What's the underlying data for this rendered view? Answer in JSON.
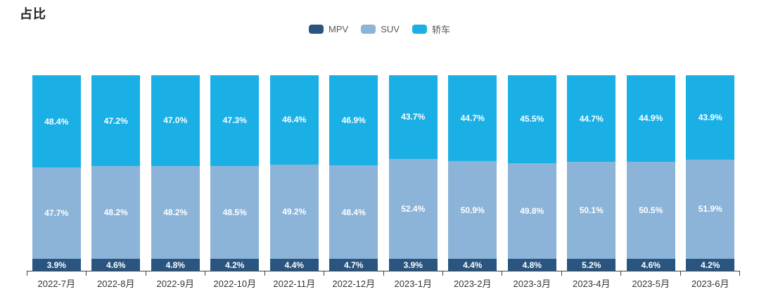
{
  "title": "占比",
  "chart_data": {
    "type": "bar",
    "variant": "stacked-percent-column",
    "title": "占比",
    "xlabel": "",
    "ylabel": "",
    "ylim": [
      0,
      100
    ],
    "grid": false,
    "y_axis_visible": false,
    "legend_position": "top-center",
    "value_label_format": "0.0%",
    "value_label_color": "#ffffff",
    "categories": [
      "2022-7月",
      "2022-8月",
      "2022-9月",
      "2022-10月",
      "2022-11月",
      "2022-12月",
      "2023-1月",
      "2023-2月",
      "2023-3月",
      "2023-4月",
      "2023-5月",
      "2023-6月"
    ],
    "series": [
      {
        "key": "mpv",
        "name": "MPV",
        "color": "#2a5580",
        "values": [
          3.9,
          4.6,
          4.8,
          4.2,
          4.4,
          4.7,
          3.9,
          4.4,
          4.8,
          5.2,
          4.6,
          4.2
        ]
      },
      {
        "key": "suv",
        "name": "SUV",
        "color": "#8bb4d8",
        "values": [
          47.7,
          48.2,
          48.2,
          48.5,
          49.2,
          48.4,
          52.4,
          50.9,
          49.8,
          50.1,
          50.5,
          51.9
        ]
      },
      {
        "key": "sedan",
        "name": "轿车",
        "color": "#1ab0e6",
        "values": [
          48.4,
          47.2,
          47.0,
          47.3,
          46.4,
          46.9,
          43.7,
          44.7,
          45.5,
          44.7,
          44.9,
          43.9
        ]
      }
    ]
  }
}
